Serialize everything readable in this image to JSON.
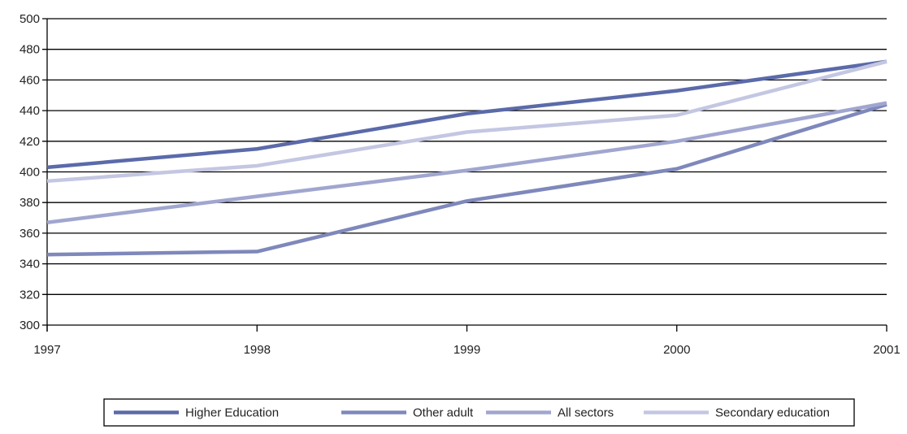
{
  "chart_data": {
    "type": "line",
    "x": [
      "1997",
      "1998",
      "1999",
      "2000",
      "2001"
    ],
    "ylim": [
      300,
      500
    ],
    "yticks": [
      300,
      320,
      340,
      360,
      380,
      400,
      420,
      440,
      460,
      480,
      500
    ],
    "grid": true,
    "legend_position": "bottom",
    "series": [
      {
        "name": "Higher Education",
        "color": "#5b6aa9",
        "values": [
          403,
          415,
          438,
          453,
          472
        ]
      },
      {
        "name": "Other adult",
        "color": "#7f88bb",
        "values": [
          346,
          348,
          381,
          402,
          444
        ]
      },
      {
        "name": "All sectors",
        "color": "#a0a6cf",
        "values": [
          367,
          384,
          401,
          420,
          445
        ]
      },
      {
        "name": "Secondary education",
        "color": "#c4c7e2",
        "values": [
          394,
          404,
          426,
          437,
          472
        ]
      }
    ]
  }
}
